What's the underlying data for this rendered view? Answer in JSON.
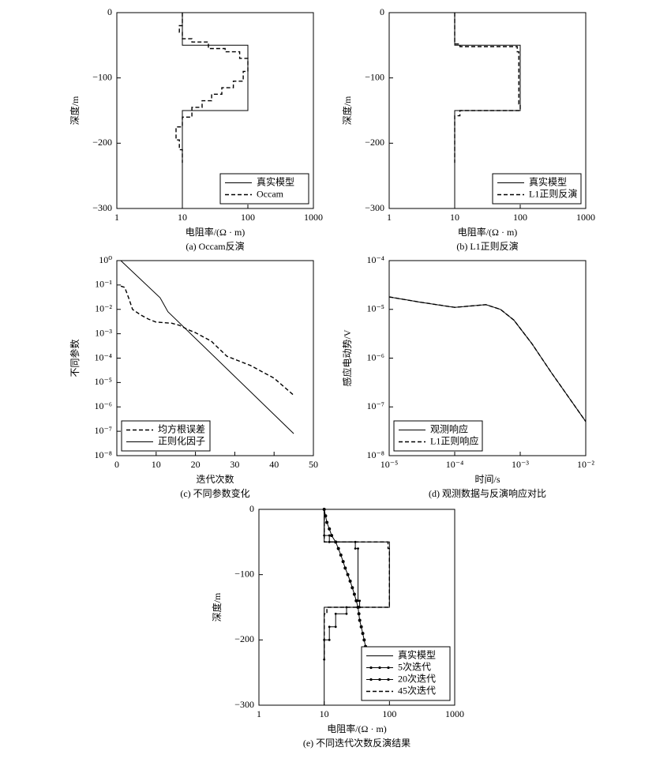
{
  "chart_data": [
    {
      "type": "line",
      "xlabel": "电阻率/(Ω · m)",
      "ylabel": "深度/m",
      "caption": "(a) Occam反演",
      "xlog": true,
      "xlim": [
        1,
        1000
      ],
      "xticks": [
        1,
        10,
        100,
        1000
      ],
      "ylim": [
        -300,
        0
      ],
      "yticks": [
        0,
        {
          "value": -100,
          "label": "−100"
        },
        {
          "value": -200,
          "label": "−200"
        },
        {
          "value": -300,
          "label": "−300"
        }
      ],
      "legend": "lower right",
      "series": [
        {
          "name": "真实模型",
          "color": "#000000",
          "dash": false,
          "marker": false,
          "x": [
            10,
            10,
            100,
            100,
            10,
            10
          ],
          "values": [
            0,
            -50,
            -50,
            -150,
            -150,
            -300
          ]
        },
        {
          "name": "Occam",
          "color": "#000000",
          "dash": true,
          "marker": false,
          "x": [
            10,
            10,
            9,
            9,
            10,
            10,
            14,
            14,
            25,
            25,
            45,
            45,
            75,
            75,
            100,
            100,
            85,
            85,
            60,
            60,
            40,
            40,
            28,
            28,
            20,
            20,
            14,
            14,
            10,
            10,
            8,
            8,
            9,
            9,
            10,
            10
          ],
          "values": [
            0,
            -20,
            -20,
            -30,
            -30,
            -40,
            -40,
            -45,
            -45,
            -55,
            -55,
            -60,
            -60,
            -70,
            -70,
            -90,
            -90,
            -105,
            -105,
            -115,
            -115,
            -125,
            -125,
            -135,
            -135,
            -145,
            -145,
            -160,
            -160,
            -175,
            -175,
            -195,
            -195,
            -210,
            -210,
            -230
          ]
        }
      ]
    },
    {
      "type": "line",
      "xlabel": "电阻率/(Ω · m)",
      "ylabel": "深度/m",
      "caption": "(b) L1正则反演",
      "xlog": true,
      "xlim": [
        1,
        1000
      ],
      "xticks": [
        1,
        10,
        100,
        1000
      ],
      "ylim": [
        -300,
        0
      ],
      "yticks": [
        0,
        {
          "value": -100,
          "label": "−100"
        },
        {
          "value": -200,
          "label": "−200"
        },
        {
          "value": -300,
          "label": "−300"
        }
      ],
      "legend": "lower right",
      "series": [
        {
          "name": "真实模型",
          "color": "#000000",
          "dash": false,
          "marker": false,
          "x": [
            10,
            10,
            100,
            100,
            10,
            10
          ],
          "values": [
            0,
            -50,
            -50,
            -150,
            -150,
            -300
          ]
        },
        {
          "name": "L1正则反演",
          "color": "#000000",
          "dash": true,
          "marker": false,
          "x": [
            10,
            10,
            12,
            12,
            90,
            90,
            95,
            95,
            100,
            100,
            12,
            12,
            10,
            10
          ],
          "values": [
            0,
            -48,
            -48,
            -52,
            -52,
            -60,
            -60,
            -140,
            -140,
            -150,
            -150,
            -158,
            -158,
            -230
          ]
        }
      ]
    },
    {
      "type": "line",
      "xlabel": "迭代次数",
      "ylabel": "不同参数",
      "caption": "(c) 不同参数变化",
      "xlog": false,
      "xlim": [
        0,
        50
      ],
      "xticks": [
        0,
        10,
        20,
        30,
        40,
        50
      ],
      "ylog": true,
      "ylim": [
        1e-08,
        1
      ],
      "yticks": [
        {
          "value": 1,
          "label": "10⁰"
        },
        {
          "value": 0.1,
          "label": "10⁻¹"
        },
        {
          "value": 0.01,
          "label": "10⁻²"
        },
        {
          "value": 0.001,
          "label": "10⁻³"
        },
        {
          "value": 0.0001,
          "label": "10⁻⁴"
        },
        {
          "value": 1e-05,
          "label": "10⁻⁵"
        },
        {
          "value": 1e-06,
          "label": "10⁻⁶"
        },
        {
          "value": 1e-07,
          "label": "10⁻⁷"
        },
        {
          "value": 1e-08,
          "label": "10⁻⁸"
        }
      ],
      "legend": "lower left",
      "series": [
        {
          "name": "均方根误差",
          "color": "#000000",
          "dash": true,
          "marker": false,
          "x": [
            1,
            2,
            3,
            4,
            6,
            8,
            10,
            14,
            16,
            18,
            20,
            24,
            28,
            34,
            40,
            45
          ],
          "values": [
            0.09,
            0.08,
            0.03,
            0.01,
            0.006,
            0.004,
            0.003,
            0.0027,
            0.0022,
            0.0015,
            0.0011,
            0.0005,
            0.00012,
            5e-05,
            1.5e-05,
            3e-06
          ]
        },
        {
          "name": "正则化因子",
          "color": "#000000",
          "dash": false,
          "marker": false,
          "x": [
            1,
            11,
            13,
            45
          ],
          "values": [
            1,
            0.03,
            0.008,
            8e-08
          ]
        }
      ]
    },
    {
      "type": "line",
      "xlabel": "时间/s",
      "ylabel": "感应电动势/V",
      "caption": "(d) 观测数据与反演响应对比",
      "xlog": true,
      "xlim": [
        1e-05,
        0.01
      ],
      "xticks": [
        {
          "value": 1e-05,
          "label": "10⁻⁵"
        },
        {
          "value": 0.0001,
          "label": "10⁻⁴"
        },
        {
          "value": 0.001,
          "label": "10⁻³"
        },
        {
          "value": 0.01,
          "label": "10⁻²"
        }
      ],
      "ylog": true,
      "ylim": [
        1e-08,
        0.0001
      ],
      "yticks": [
        {
          "value": 0.0001,
          "label": "10⁻⁴"
        },
        {
          "value": 1e-05,
          "label": "10⁻⁵"
        },
        {
          "value": 1e-06,
          "label": "10⁻⁶"
        },
        {
          "value": 1e-07,
          "label": "10⁻⁷"
        },
        {
          "value": 1e-08,
          "label": "10⁻⁸"
        }
      ],
      "legend": "lower left",
      "series": [
        {
          "name": "观测响应",
          "color": "#000000",
          "dash": false,
          "marker": false,
          "x": [
            1e-05,
            3e-05,
            0.0001,
            0.0003,
            0.0005,
            0.0008,
            0.0015,
            0.003,
            0.01
          ],
          "values": [
            1.8e-05,
            1.4e-05,
            1.1e-05,
            1.25e-05,
            1e-05,
            6e-06,
            2e-06,
            5e-07,
            5e-08
          ]
        },
        {
          "name": "L1正则响应",
          "color": "#000000",
          "dash": true,
          "marker": false,
          "x": [
            1e-05,
            3e-05,
            0.0001,
            0.0003,
            0.0005,
            0.0008,
            0.0015,
            0.003,
            0.01
          ],
          "values": [
            1.8e-05,
            1.4e-05,
            1.1e-05,
            1.25e-05,
            1e-05,
            6e-06,
            2e-06,
            5e-07,
            5e-08
          ]
        }
      ]
    },
    {
      "type": "line",
      "xlabel": "电阻率/(Ω · m)",
      "ylabel": "深度/m",
      "caption": "(e) 不同迭代次数反演结果",
      "xlog": true,
      "xlim": [
        1,
        1000
      ],
      "xticks": [
        1,
        10,
        100,
        1000
      ],
      "ylim": [
        -300,
        0
      ],
      "yticks": [
        0,
        {
          "value": -100,
          "label": "−100"
        },
        {
          "value": -200,
          "label": "−200"
        },
        {
          "value": -300,
          "label": "−300"
        }
      ],
      "legend": "lower right",
      "series": [
        {
          "name": "真实模型",
          "color": "#000000",
          "dash": false,
          "marker": false,
          "x": [
            10,
            10,
            100,
            100,
            10,
            10
          ],
          "values": [
            0,
            -50,
            -50,
            -150,
            -150,
            -300
          ]
        },
        {
          "name": "5次迭代",
          "color": "#000000",
          "dash": false,
          "marker": true,
          "x": [
            10,
            10.5,
            11,
            12,
            13,
            15,
            16.5,
            18,
            19.5,
            21,
            23,
            25,
            27,
            29,
            31,
            33,
            34,
            35,
            37,
            39,
            41,
            43,
            45,
            46
          ],
          "values": [
            0,
            -10,
            -20,
            -30,
            -40,
            -50,
            -60,
            -70,
            -80,
            -90,
            -100,
            -110,
            -120,
            -130,
            -140,
            -150,
            -160,
            -170,
            -180,
            -190,
            -200,
            -210,
            -220,
            -230
          ]
        },
        {
          "name": "20次迭代",
          "color": "#000000",
          "dash": false,
          "marker": true,
          "x": [
            10,
            10,
            12,
            12,
            30,
            30,
            33,
            33,
            35,
            35,
            22,
            22,
            15,
            15,
            12,
            12,
            10,
            10
          ],
          "values": [
            0,
            -40,
            -40,
            -50,
            -50,
            -60,
            -60,
            -140,
            -140,
            -150,
            -150,
            -160,
            -160,
            -180,
            -180,
            -200,
            -200,
            -230
          ]
        },
        {
          "name": "45次迭代",
          "color": "#000000",
          "dash": true,
          "marker": false,
          "x": [
            10,
            10,
            95,
            95,
            100,
            100,
            11,
            11,
            10,
            10
          ],
          "values": [
            0,
            -50,
            -50,
            -60,
            -60,
            -150,
            -150,
            -160,
            -160,
            -230
          ]
        }
      ]
    }
  ]
}
